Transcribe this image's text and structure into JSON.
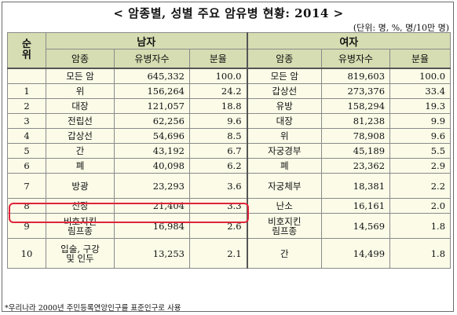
{
  "title": "< 암종별, 성별 주요 암유병 현황: 2014 >",
  "unit_note": "(단위: 명, %, 명/10만 명)",
  "header": {
    "rank": "순위",
    "male": "남자",
    "female": "여자",
    "cancer": "암종",
    "patients": "유병자수",
    "share": "분율"
  },
  "rows": [
    {
      "rank": "",
      "m_cancer": "모든 암",
      "m_count": "645,332",
      "m_share": "100.0",
      "f_cancer": "모든 암",
      "f_count": "819,603",
      "f_share": "100.0"
    },
    {
      "rank": "1",
      "m_cancer": "위",
      "m_count": "156,264",
      "m_share": "24.2",
      "f_cancer": "갑상선",
      "f_count": "273,376",
      "f_share": "33.4"
    },
    {
      "rank": "2",
      "m_cancer": "대장",
      "m_count": "121,057",
      "m_share": "18.8",
      "f_cancer": "유방",
      "f_count": "158,294",
      "f_share": "19.3"
    },
    {
      "rank": "3",
      "m_cancer": "전립선",
      "m_count": "62,256",
      "m_share": "9.6",
      "f_cancer": "대장",
      "f_count": "81,238",
      "f_share": "9.9"
    },
    {
      "rank": "4",
      "m_cancer": "갑상선",
      "m_count": "54,696",
      "m_share": "8.5",
      "f_cancer": "위",
      "f_count": "78,908",
      "f_share": "9.6"
    },
    {
      "rank": "5",
      "m_cancer": "간",
      "m_count": "43,192",
      "m_share": "6.7",
      "f_cancer": "자궁경부",
      "f_count": "45,189",
      "f_share": "5.5"
    },
    {
      "rank": "6",
      "m_cancer": "폐",
      "m_count": "40,098",
      "m_share": "6.2",
      "f_cancer": "폐",
      "f_count": "23,362",
      "f_share": "2.9"
    },
    {
      "rank": "7",
      "m_cancer": "방광",
      "m_count": "23,293",
      "m_share": "3.6",
      "f_cancer": "자궁체부",
      "f_count": "18,381",
      "f_share": "2.2"
    },
    {
      "rank": "8",
      "m_cancer": "신장",
      "m_count": "21,404",
      "m_share": "3.3",
      "f_cancer": "난소",
      "f_count": "16,161",
      "f_share": "2.0"
    },
    {
      "rank": "9",
      "m_cancer_l1": "비호지킨",
      "m_cancer_l2": "림프종",
      "m_count": "16,984",
      "m_share": "2.6",
      "f_cancer_l1": "비호지킨",
      "f_cancer_l2": "림프종",
      "f_count": "14,569",
      "f_share": "1.8"
    },
    {
      "rank": "10",
      "m_cancer_l1": "입술, 구강",
      "m_cancer_l2": "및 인두",
      "m_count": "13,253",
      "m_share": "2.1",
      "f_cancer": "간",
      "f_count": "14,499",
      "f_share": "1.8"
    }
  ],
  "footnote": "*우리나라 2000년 주민등록연앙인구를 표준인구로 사용",
  "colors": {
    "header_bg": "#d6ddb2",
    "cell_bg": "#fbfbe8",
    "highlight": "#e0243b"
  }
}
